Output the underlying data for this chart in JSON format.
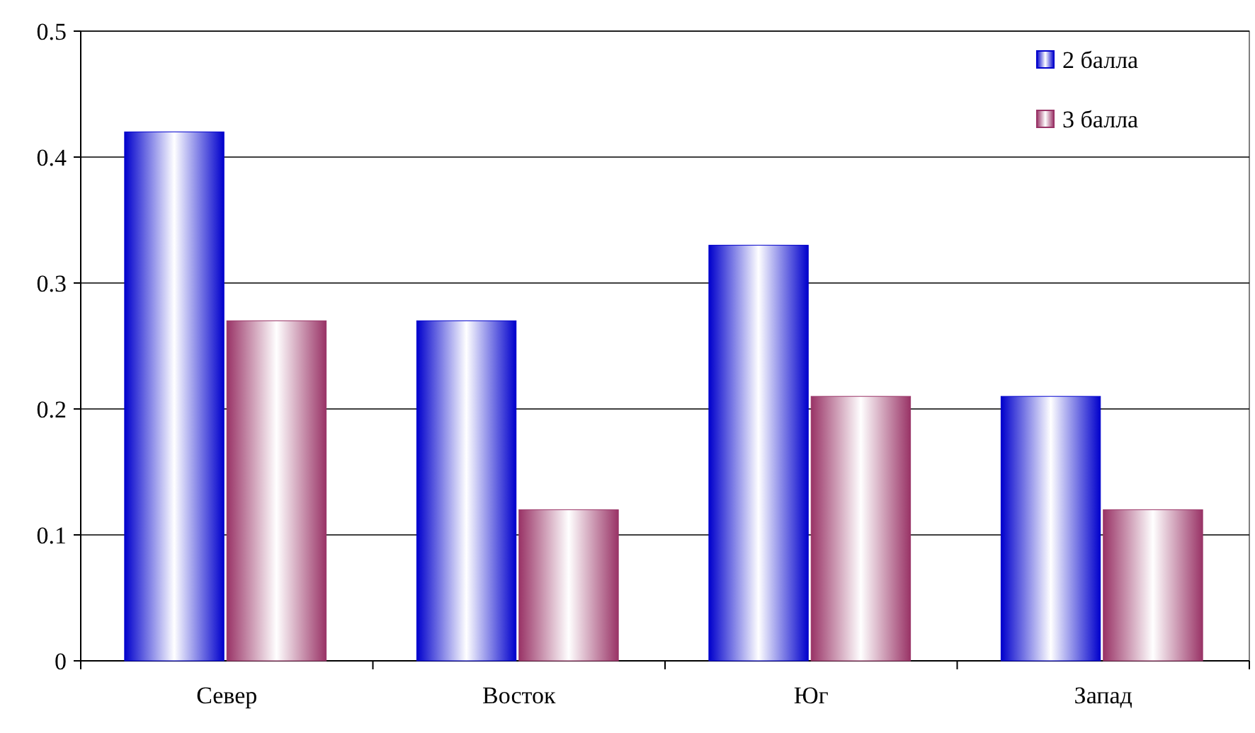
{
  "chart_data": {
    "type": "bar",
    "categories": [
      "Север",
      "Восток",
      "Юг",
      "Запад"
    ],
    "series": [
      {
        "name": "2 балла",
        "color": "#0000cc",
        "values": [
          0.42,
          0.27,
          0.33,
          0.21
        ]
      },
      {
        "name": "3 балла",
        "color": "#993366",
        "values": [
          0.27,
          0.12,
          0.21,
          0.12
        ]
      }
    ],
    "ylim": [
      0,
      0.5
    ],
    "yticks": [
      {
        "value": 0,
        "label": "0"
      },
      {
        "value": 0.1,
        "label": "0.1"
      },
      {
        "value": 0.2,
        "label": "0.2"
      },
      {
        "value": 0.3,
        "label": "0.3"
      },
      {
        "value": 0.4,
        "label": "0.4"
      },
      {
        "value": 0.5,
        "label": "0.5"
      }
    ],
    "grid": "y",
    "legend": "top right"
  }
}
